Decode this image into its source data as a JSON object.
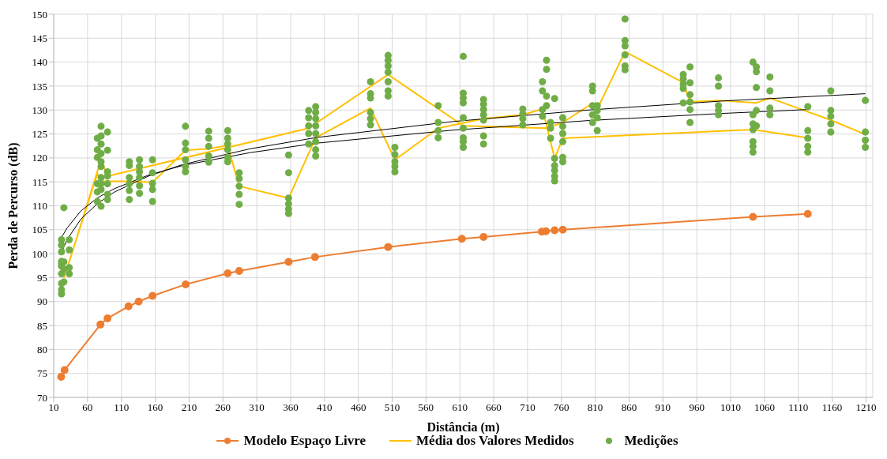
{
  "chart_data": {
    "type": "line",
    "xlabel": "Distância (m)",
    "ylabel": "Perda de Percurso (dB)",
    "xlim": [
      10,
      1220
    ],
    "xticks": [
      10,
      60,
      110,
      160,
      210,
      260,
      310,
      360,
      410,
      460,
      510,
      560,
      610,
      660,
      710,
      760,
      810,
      860,
      910,
      960,
      1010,
      1060,
      1110,
      1160,
      1210
    ],
    "ylim": [
      70,
      150
    ],
    "yticks": [
      70,
      75,
      80,
      85,
      90,
      95,
      100,
      105,
      110,
      115,
      120,
      125,
      130,
      135,
      140,
      145,
      150
    ],
    "grid": true,
    "legend": "bottom",
    "series": [
      {
        "name": "Modelo Espaço Livre",
        "marker": "circle",
        "color": "#ed7d31",
        "x": [
          21,
          26,
          79,
          89.5,
          120.5,
          135.5,
          156,
          205,
          267,
          284,
          357,
          396,
          504,
          613,
          645,
          731,
          737,
          750,
          762,
          1043,
          1124
        ],
        "values": [
          74.3,
          75.7,
          85.2,
          86.5,
          89.0,
          90.0,
          91.2,
          93.6,
          95.9,
          96.4,
          98.3,
          99.3,
          101.4,
          103.1,
          103.5,
          104.6,
          104.7,
          104.9,
          105.0,
          107.7,
          108.3
        ]
      },
      {
        "name": "Média dos Valores Medidos",
        "marker": "none",
        "color": "#ffc000",
        "x": [
          25,
          74.5,
          80,
          121.7,
          156,
          204.6,
          239,
          267,
          284,
          357,
          397,
          478,
          514,
          578,
          645,
          703,
          732,
          750,
          762,
          1043,
          1124,
          null,
          33,
          80,
          89.5,
          386.6,
          504,
          615,
          738,
          762,
          806,
          813,
          854,
          940,
          950,
          992,
          1048,
          1068,
          1158,
          1209
        ],
        "values": [
          94.9,
          116.7,
          115.1,
          115.1,
          114.9,
          121.6,
          121.9,
          122.6,
          114.1,
          111.6,
          124.2,
          130.4,
          119.6,
          126.2,
          128.2,
          129.0,
          130.2,
          119.9,
          124.1,
          125.9,
          124.2,
          null,
          98.3,
          119.7,
          116.2,
          126.2,
          137.4,
          126.7,
          126.2,
          127.4,
          131.4,
          130.2,
          142.2,
          135.7,
          131.7,
          132.0,
          131.5,
          132.5,
          127.9,
          124.9
        ]
      },
      {
        "marker": "none",
        "color": "#000000",
        "x": [
          21,
          30,
          50,
          75,
          100,
          150,
          200,
          300,
          400,
          600,
          800,
          1000,
          1124
        ],
        "values": [
          103.3,
          105.4,
          108.9,
          111.7,
          113.6,
          116.4,
          118.4,
          121.1,
          123.1,
          125.8,
          127.8,
          129.3,
          130.1
        ]
      },
      {
        "marker": "none",
        "color": "#000000",
        "x": [
          22,
          30,
          50,
          75,
          100,
          150,
          200,
          300,
          400,
          600,
          800,
          1000,
          1209
        ],
        "values": [
          100.4,
          103.0,
          107.2,
          110.5,
          112.9,
          116.2,
          118.6,
          121.9,
          124.3,
          127.6,
          130.0,
          131.9,
          133.4
        ]
      },
      {
        "name": "Medições",
        "type": "scatter",
        "marker": "circle",
        "color": "#70ad47",
        "x": [
          21.5,
          21.5,
          21.5,
          21.5,
          21.5,
          21.5,
          21.5,
          21.5,
          21.5,
          21.5,
          25,
          25,
          25,
          25,
          33,
          33,
          33,
          33,
          74.5,
          74.5,
          74.5,
          74.5,
          74.5,
          74.5,
          80,
          80,
          80,
          80,
          80,
          80,
          80,
          80,
          80,
          80,
          89.5,
          89.5,
          89.5,
          89.5,
          89.5,
          89.5,
          89.5,
          121.7,
          121.7,
          121.7,
          121.7,
          121.7,
          121.7,
          136.7,
          136.7,
          136.7,
          136.7,
          136.7,
          136.7,
          156,
          156,
          156,
          156,
          156,
          204.6,
          204.6,
          204.6,
          204.6,
          204.6,
          204.6,
          239,
          239,
          239,
          239,
          239,
          267,
          267,
          267,
          267,
          267,
          267,
          284,
          284,
          284,
          284,
          284,
          357,
          357,
          357,
          357,
          357,
          357,
          386.6,
          386.6,
          386.6,
          386.6,
          386.6,
          397,
          397,
          397,
          397,
          397,
          397,
          397,
          397,
          478,
          478,
          478,
          478,
          478,
          478,
          504,
          504,
          504,
          504,
          504,
          504,
          504,
          514,
          514,
          514,
          514,
          514,
          578,
          578,
          578,
          578,
          615,
          615,
          615,
          615,
          615,
          615,
          615,
          615,
          615,
          645,
          645,
          645,
          645,
          645,
          645,
          645,
          703,
          703,
          703,
          703,
          732,
          732,
          732,
          732,
          738,
          738,
          738,
          738,
          744,
          744,
          744,
          750,
          750,
          750,
          750,
          750,
          750,
          762,
          762,
          762,
          762,
          762,
          762,
          806,
          806,
          806,
          806,
          806,
          813,
          813,
          813,
          813,
          854,
          854,
          854,
          854,
          854,
          854,
          940,
          940,
          940,
          940,
          940,
          950,
          950,
          950,
          950,
          950,
          950,
          992,
          992,
          992,
          992,
          992,
          1043,
          1043,
          1043,
          1043,
          1043,
          1043,
          1043,
          1048,
          1048,
          1048,
          1048,
          1048,
          1068,
          1068,
          1068,
          1068,
          1124,
          1124,
          1124,
          1124,
          1124,
          1158,
          1158,
          1158,
          1158,
          1158,
          1209,
          1209,
          1209,
          1209
        ],
        "values": [
          102.9,
          101.8,
          100.4,
          98.4,
          97.9,
          97.4,
          95.8,
          93.8,
          92.5,
          91.6,
          109.6,
          98.3,
          96.8,
          94.1,
          102.9,
          100.8,
          97.1,
          95.8,
          124.1,
          121.7,
          120.1,
          114.6,
          112.9,
          110.9,
          126.6,
          124.6,
          122.9,
          120.9,
          119.2,
          118.2,
          115.9,
          114.6,
          113.4,
          109.9,
          125.4,
          121.6,
          117.1,
          116.2,
          114.6,
          112.4,
          111.3,
          119.2,
          118.4,
          115.9,
          114.6,
          113.2,
          111.3,
          119.6,
          118.2,
          117.1,
          115.9,
          114.2,
          112.6,
          119.6,
          116.9,
          114.7,
          113.4,
          110.9,
          126.6,
          123.1,
          121.7,
          119.6,
          118.2,
          117.1,
          125.6,
          124.1,
          122.4,
          120.4,
          119.1,
          125.7,
          124.1,
          122.9,
          121.7,
          120.1,
          119.2,
          116.9,
          115.7,
          114.1,
          112.4,
          110.3,
          120.6,
          116.9,
          111.6,
          110.4,
          109.3,
          108.4,
          129.9,
          128.4,
          126.7,
          125.1,
          122.9,
          130.7,
          129.5,
          128.2,
          126.7,
          125.1,
          123.4,
          121.7,
          120.4,
          135.9,
          133.4,
          132.5,
          129.5,
          128.2,
          126.9,
          141.4,
          140.4,
          139.2,
          137.9,
          135.9,
          134.0,
          132.9,
          122.2,
          120.7,
          119.2,
          118.2,
          117.1,
          130.9,
          127.4,
          125.7,
          124.2,
          141.2,
          133.5,
          132.5,
          131.5,
          128.4,
          126.2,
          124.2,
          123.4,
          122.2,
          132.2,
          131.2,
          130.1,
          129.0,
          127.9,
          124.6,
          122.9,
          130.2,
          129.2,
          128.2,
          126.9,
          135.9,
          134.0,
          130.1,
          128.7,
          140.4,
          138.5,
          132.9,
          130.9,
          127.4,
          126.2,
          124.1,
          132.4,
          119.9,
          118.4,
          117.4,
          116.2,
          115.2,
          128.4,
          126.6,
          125.1,
          123.4,
          120.1,
          119.2,
          135.0,
          134.0,
          130.9,
          129.0,
          127.4,
          130.9,
          129.9,
          128.4,
          125.7,
          149.0,
          144.5,
          143.4,
          141.5,
          139.2,
          138.4,
          137.4,
          136.5,
          135.4,
          134.5,
          131.5,
          139.0,
          135.7,
          133.2,
          131.7,
          130.1,
          127.4,
          136.7,
          135.0,
          130.9,
          129.9,
          129.0,
          140.0,
          129.0,
          127.1,
          125.9,
          123.4,
          122.4,
          121.2,
          139.0,
          138.0,
          134.7,
          129.9,
          126.7,
          136.9,
          134.0,
          130.4,
          129.0,
          130.7,
          125.7,
          124.1,
          122.4,
          121.2,
          134.0,
          129.9,
          128.7,
          127.1,
          125.4,
          132.0,
          125.4,
          123.7,
          122.2
        ]
      }
    ]
  }
}
